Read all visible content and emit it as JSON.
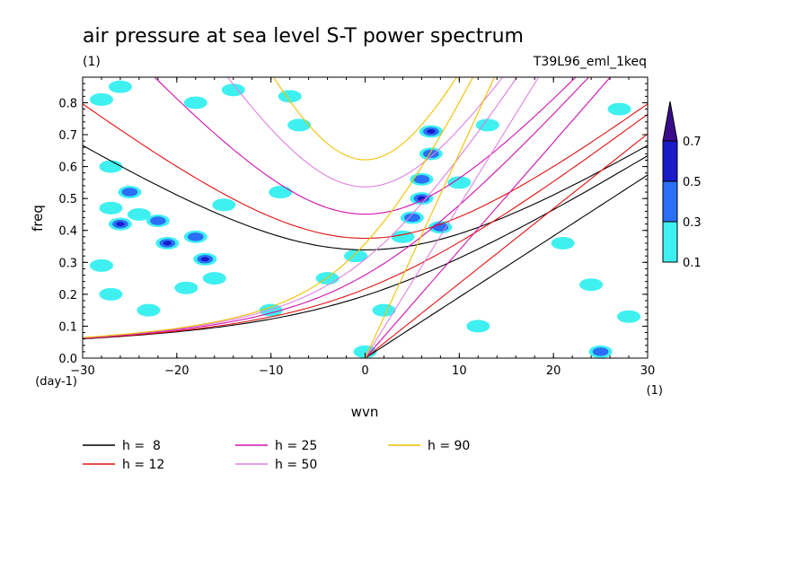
{
  "chart_data": {
    "type": "heatmap",
    "title": "air pressure at sea level S-T power spectrum",
    "title_unit": "(1)",
    "subtitle_right": "T39L96_eml_1keq",
    "xlabel": "wvn",
    "ylabel": "freq",
    "x_unit": "(1)",
    "y_unit": "(day-1)",
    "xlim": [
      -30,
      30
    ],
    "ylim": [
      0,
      0.88
    ],
    "x_ticks": [
      "-30",
      "-20",
      "-10",
      "0",
      "10",
      "20",
      "30"
    ],
    "y_ticks": [
      "0.0",
      "0.1",
      "0.2",
      "0.3",
      "0.4",
      "0.5",
      "0.6",
      "0.7",
      "0.8"
    ],
    "colorbar": {
      "levels": [
        "0.1",
        "0.3",
        "0.5",
        "0.7"
      ],
      "colors": [
        "#3ff0f0",
        "#2a6ff5",
        "#1a1ac8",
        "#3a0c8c"
      ]
    },
    "dispersion_curves": [
      {
        "label": "h =  8",
        "h": 8,
        "color": "#000000"
      },
      {
        "label": "h = 12",
        "h": 12,
        "color": "#e01010"
      },
      {
        "label": "h = 25",
        "h": 25,
        "color": "#d010b0"
      },
      {
        "label": "h = 50",
        "h": 50,
        "color": "#e080e0"
      },
      {
        "label": "h = 90",
        "h": 90,
        "color": "#f0c000"
      }
    ],
    "power_blobs": [
      {
        "x": -28,
        "y": 0.81,
        "level": 1
      },
      {
        "x": -26,
        "y": 0.85,
        "level": 1
      },
      {
        "x": -18,
        "y": 0.8,
        "level": 1
      },
      {
        "x": -14,
        "y": 0.84,
        "level": 1
      },
      {
        "x": -8,
        "y": 0.82,
        "level": 1
      },
      {
        "x": -7,
        "y": 0.73,
        "level": 1
      },
      {
        "x": -27,
        "y": 0.6,
        "level": 1
      },
      {
        "x": -25,
        "y": 0.52,
        "level": 2
      },
      {
        "x": -27,
        "y": 0.47,
        "level": 1
      },
      {
        "x": -24,
        "y": 0.45,
        "level": 1
      },
      {
        "x": -26,
        "y": 0.42,
        "level": 3
      },
      {
        "x": -22,
        "y": 0.43,
        "level": 2
      },
      {
        "x": -21,
        "y": 0.36,
        "level": 3
      },
      {
        "x": -18,
        "y": 0.38,
        "level": 2
      },
      {
        "x": -17,
        "y": 0.31,
        "level": 3
      },
      {
        "x": -16,
        "y": 0.25,
        "level": 1
      },
      {
        "x": -19,
        "y": 0.22,
        "level": 1
      },
      {
        "x": -28,
        "y": 0.29,
        "level": 1
      },
      {
        "x": -27,
        "y": 0.2,
        "level": 1
      },
      {
        "x": -23,
        "y": 0.15,
        "level": 1
      },
      {
        "x": -10,
        "y": 0.15,
        "level": 1
      },
      {
        "x": -9,
        "y": 0.52,
        "level": 1
      },
      {
        "x": -15,
        "y": 0.48,
        "level": 1
      },
      {
        "x": -4,
        "y": 0.25,
        "level": 1
      },
      {
        "x": -1,
        "y": 0.32,
        "level": 1
      },
      {
        "x": 2,
        "y": 0.15,
        "level": 1
      },
      {
        "x": 0,
        "y": 0.02,
        "level": 1
      },
      {
        "x": 4,
        "y": 0.38,
        "level": 1
      },
      {
        "x": 5,
        "y": 0.44,
        "level": 2
      },
      {
        "x": 6,
        "y": 0.5,
        "level": 3
      },
      {
        "x": 6,
        "y": 0.56,
        "level": 2
      },
      {
        "x": 7,
        "y": 0.64,
        "level": 2
      },
      {
        "x": 7,
        "y": 0.71,
        "level": 3
      },
      {
        "x": 8,
        "y": 0.41,
        "level": 2
      },
      {
        "x": 10,
        "y": 0.55,
        "level": 1
      },
      {
        "x": 13,
        "y": 0.73,
        "level": 1
      },
      {
        "x": 12,
        "y": 0.1,
        "level": 1
      },
      {
        "x": 21,
        "y": 0.36,
        "level": 1
      },
      {
        "x": 24,
        "y": 0.23,
        "level": 1
      },
      {
        "x": 25,
        "y": 0.02,
        "level": 2
      },
      {
        "x": 28,
        "y": 0.13,
        "level": 1
      },
      {
        "x": 27,
        "y": 0.78,
        "level": 1
      }
    ]
  }
}
